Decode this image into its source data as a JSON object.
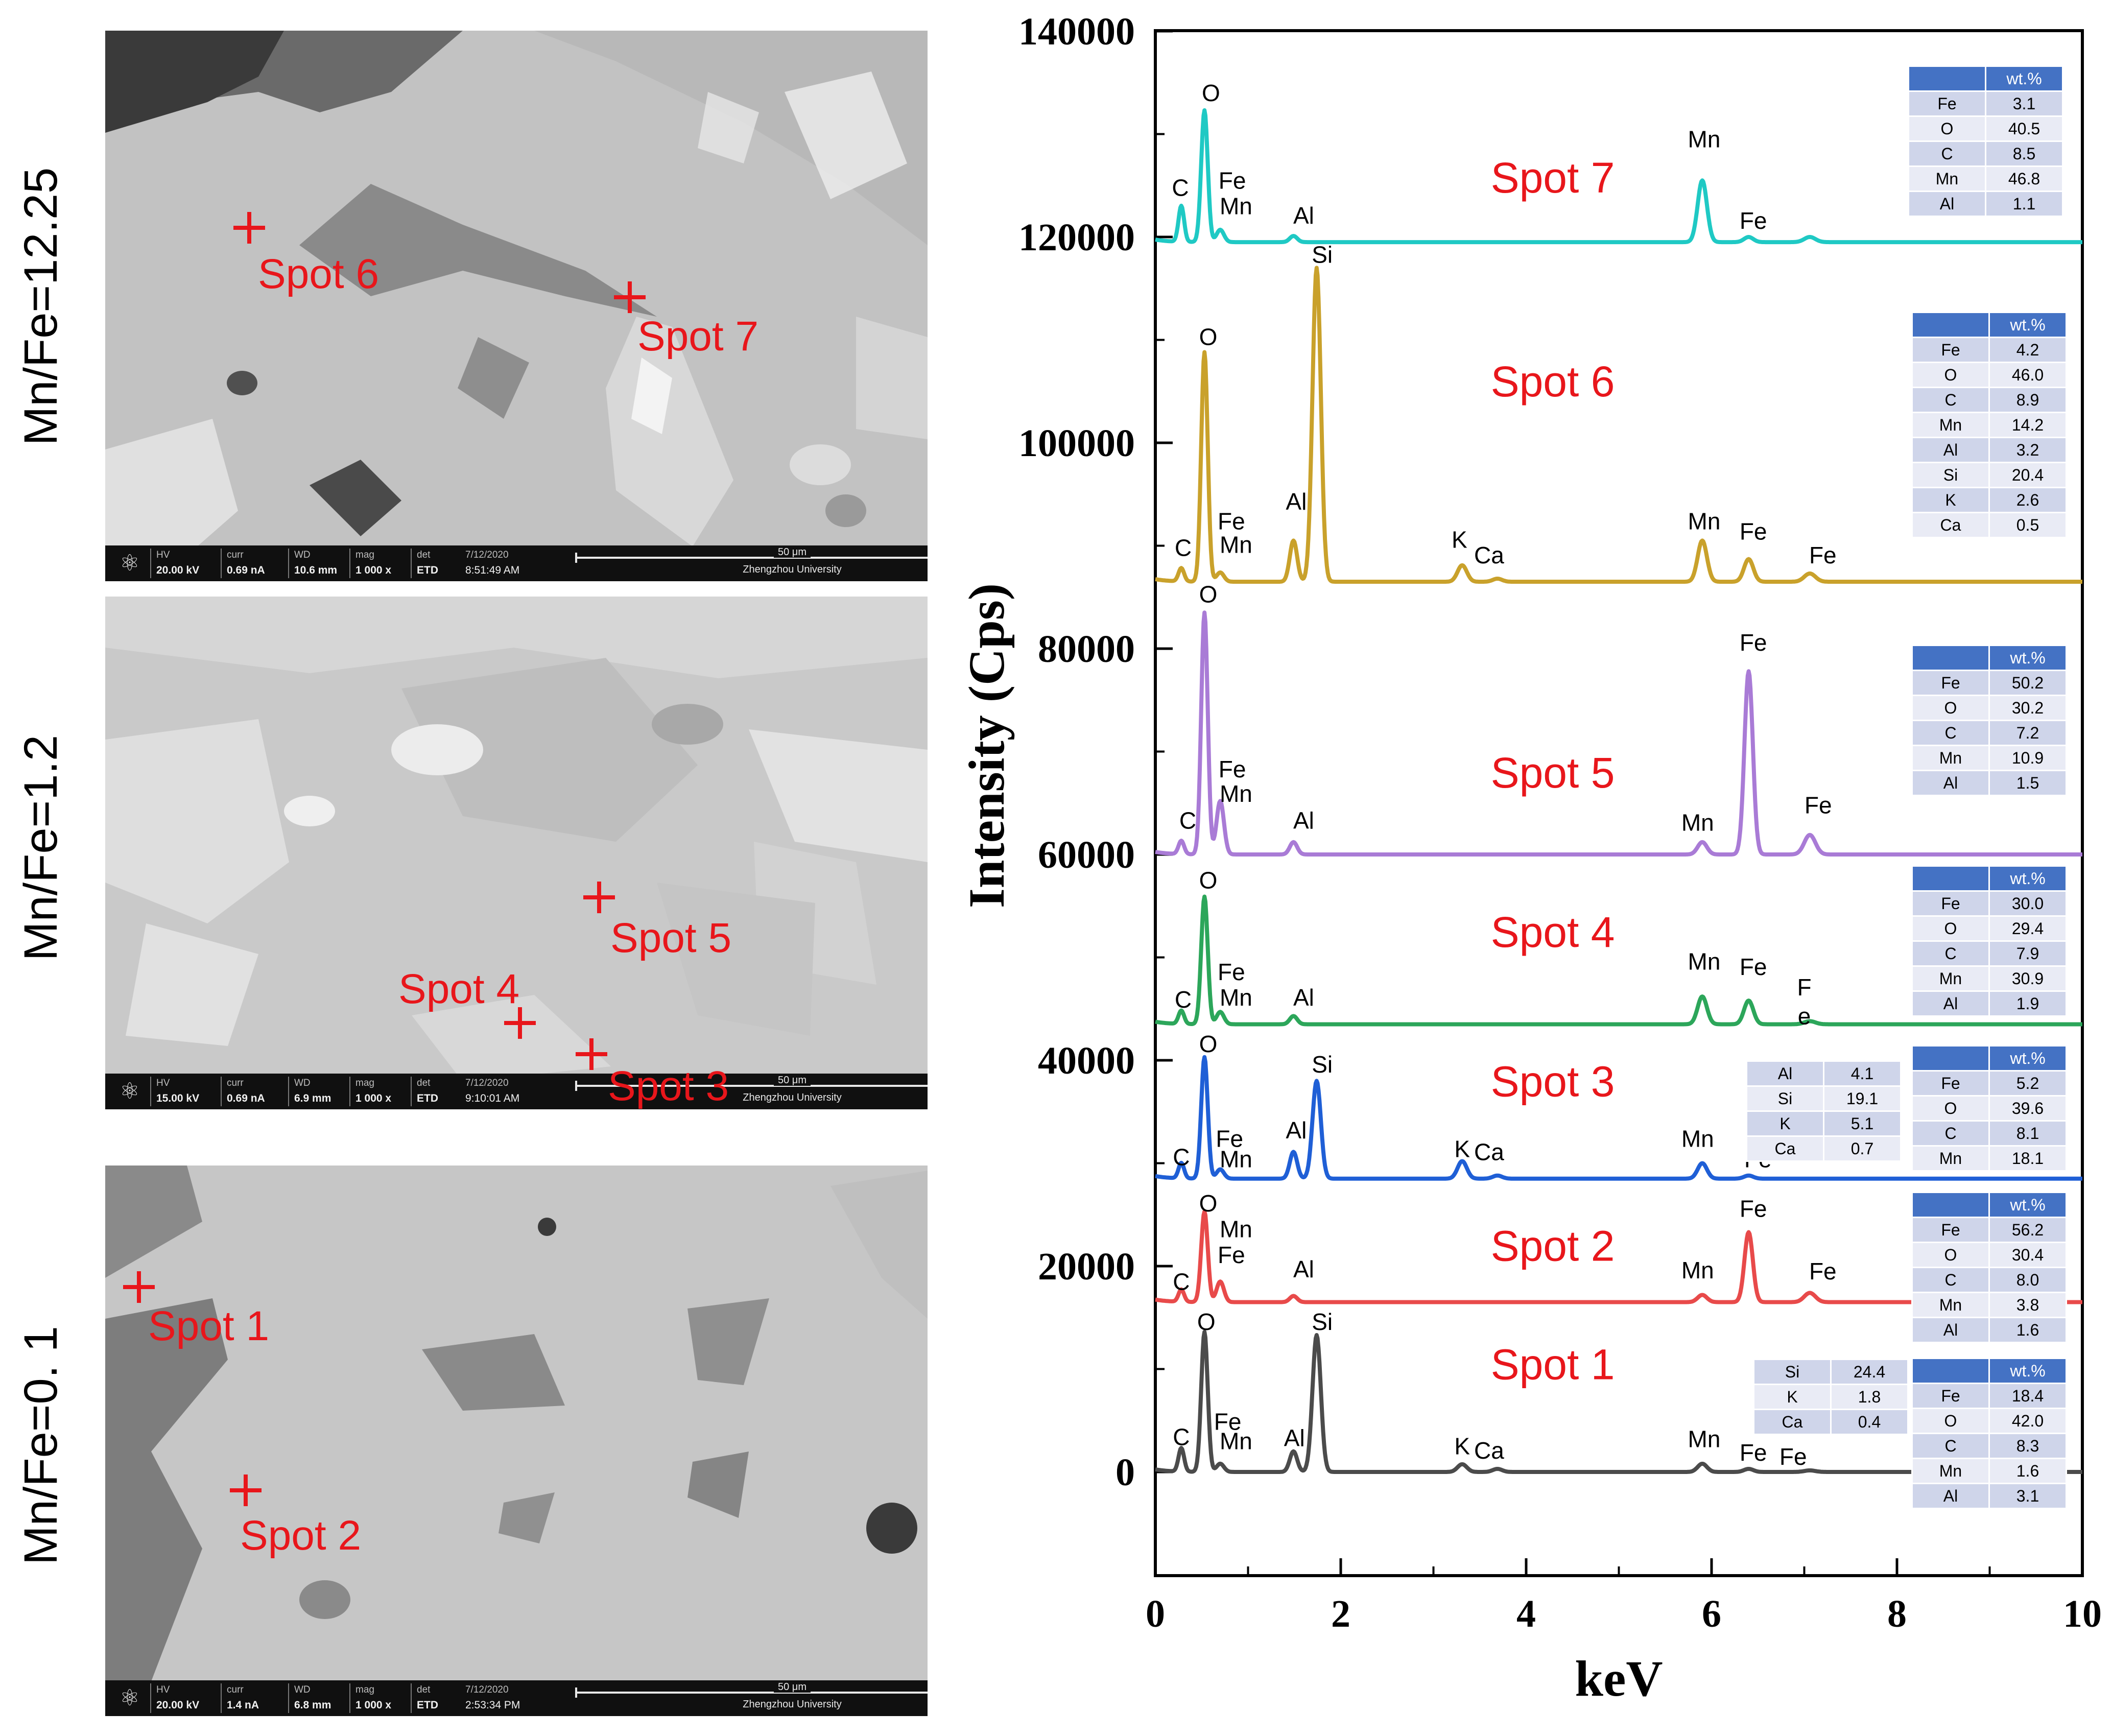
{
  "sem_panels": [
    {
      "sample_label": "Mn/Fe=12.25",
      "spots": [
        {
          "label": "Spot 6"
        },
        {
          "label": "Spot 7"
        }
      ],
      "info_bar": {
        "hv": "20.00 kV",
        "curr": "0.69 nA",
        "wd": "10.6 mm",
        "mag": "1 000 x",
        "det": "ETD",
        "date": "7/12/2020",
        "time": "8:51:49 AM",
        "scale": "50 μm",
        "institution": "Zhengzhou University"
      }
    },
    {
      "sample_label": "Mn/Fe=1.2",
      "spots": [
        {
          "label": "Spot 5"
        },
        {
          "label": "Spot 4"
        },
        {
          "label": "Spot 3"
        }
      ],
      "info_bar": {
        "hv": "15.00 kV",
        "curr": "0.69 nA",
        "wd": "6.9 mm",
        "mag": "1 000 x",
        "det": "ETD",
        "date": "7/12/2020",
        "time": "9:10:01 AM",
        "scale": "50 μm",
        "institution": "Zhengzhou University"
      }
    },
    {
      "sample_label": "Mn/Fe=0. 1",
      "spots": [
        {
          "label": "Spot 1"
        },
        {
          "label": "Spot 2"
        }
      ],
      "info_bar": {
        "hv": "20.00 kV",
        "curr": "1.4 nA",
        "wd": "6.8 mm",
        "mag": "1 000 x",
        "det": "ETD",
        "date": "7/12/2020",
        "time": "2:53:34 PM",
        "scale": "50 μm",
        "institution": "Zhengzhou University"
      }
    }
  ],
  "info_headers": {
    "hv": "HV",
    "curr": "curr",
    "wd": "WD",
    "mag": "mag",
    "det": "det"
  },
  "colors": {
    "spot_red": "#e8161b",
    "spot1": "#4b4b4b",
    "spot2": "#e84a4a",
    "spot3": "#1f5fd6",
    "spot4": "#2ca65a",
    "spot5": "#a97bd6",
    "spot6": "#c9a12b",
    "spot7": "#1fc9c4",
    "table_header": "#4472c4",
    "table_odd": "#cfd5ea",
    "table_even": "#e9ebf5"
  },
  "chart_data": {
    "type": "line",
    "title": "",
    "xlabel": "keV",
    "ylabel": "Intensity (Cps)",
    "xlim": [
      0,
      10
    ],
    "ylim": [
      -10000,
      140000
    ],
    "x_ticks": [
      0,
      2,
      4,
      6,
      8,
      10
    ],
    "y_ticks": [
      0,
      20000,
      40000,
      60000,
      80000,
      100000,
      120000,
      140000
    ],
    "x_tick_labels": [
      "0",
      "2",
      "4",
      "6",
      "8",
      "10"
    ],
    "y_tick_labels": [
      "0",
      "20000",
      "40000",
      "60000",
      "80000",
      "100000",
      "120000",
      "140000"
    ],
    "series": [
      {
        "name": "Spot 1",
        "baseline": 0,
        "color": "#4b4b4b",
        "label_y": 10500,
        "peaks": [
          {
            "x": 0.28,
            "y": 2300,
            "w": 0.03
          },
          {
            "x": 0.53,
            "y": 13600,
            "w": 0.035
          },
          {
            "x": 0.7,
            "y": 800,
            "w": 0.04
          },
          {
            "x": 1.49,
            "y": 2000,
            "w": 0.04
          },
          {
            "x": 1.74,
            "y": 13300,
            "w": 0.045
          },
          {
            "x": 3.31,
            "y": 750,
            "w": 0.05
          },
          {
            "x": 3.69,
            "y": 300,
            "w": 0.05
          },
          {
            "x": 5.9,
            "y": 800,
            "w": 0.05
          },
          {
            "x": 6.4,
            "y": 300,
            "w": 0.05
          },
          {
            "x": 7.06,
            "y": 150,
            "w": 0.06
          }
        ],
        "labels": [
          {
            "text": "C",
            "x": 0.28,
            "y": 2600
          },
          {
            "text": "O",
            "x": 0.55,
            "y": 13800
          },
          {
            "text": "Fe",
            "x": 0.78,
            "y": 4100
          },
          {
            "text": "Mn",
            "x": 0.87,
            "y": 2200
          },
          {
            "text": "Al",
            "x": 1.5,
            "y": 2500
          },
          {
            "text": "Si",
            "x": 1.8,
            "y": 13800
          },
          {
            "text": "K",
            "x": 3.31,
            "y": 1700
          },
          {
            "text": "Ca",
            "x": 3.6,
            "y": 1300
          },
          {
            "text": "Mn",
            "x": 5.92,
            "y": 2400
          },
          {
            "text": "Fe",
            "x": 6.45,
            "y": 1100
          },
          {
            "text": "Fe",
            "x": 6.88,
            "y": 700
          }
        ],
        "table_left": [
          [
            "Si",
            "24.4"
          ],
          [
            "K",
            "1.8"
          ],
          [
            "Ca",
            "0.4"
          ]
        ],
        "table_right_header": "wt.%",
        "table_right": [
          [
            "Fe",
            "18.4"
          ],
          [
            "O",
            "42.0"
          ],
          [
            "C",
            "8.3"
          ],
          [
            "Mn",
            "1.6"
          ],
          [
            "Al",
            "3.1"
          ]
        ]
      },
      {
        "name": "Spot 2",
        "baseline": 16500,
        "color": "#e84a4a",
        "label_y": 22000,
        "peaks": [
          {
            "x": 0.28,
            "y": 1200,
            "w": 0.03
          },
          {
            "x": 0.53,
            "y": 8800,
            "w": 0.035
          },
          {
            "x": 0.7,
            "y": 2000,
            "w": 0.04
          },
          {
            "x": 1.49,
            "y": 600,
            "w": 0.04
          },
          {
            "x": 5.9,
            "y": 700,
            "w": 0.05
          },
          {
            "x": 6.4,
            "y": 6800,
            "w": 0.045
          },
          {
            "x": 7.06,
            "y": 900,
            "w": 0.06
          }
        ],
        "labels": [
          {
            "text": "C",
            "x": 0.28,
            "y": 17700
          },
          {
            "text": "O",
            "x": 0.57,
            "y": 25300
          },
          {
            "text": "Mn",
            "x": 0.87,
            "y": 22800
          },
          {
            "text": "Fe",
            "x": 0.82,
            "y": 20300
          },
          {
            "text": "Al",
            "x": 1.6,
            "y": 18900
          },
          {
            "text": "Mn",
            "x": 5.85,
            "y": 18800
          },
          {
            "text": "Fe",
            "x": 6.45,
            "y": 24800
          },
          {
            "text": "Fe",
            "x": 7.2,
            "y": 18700
          }
        ],
        "table_left": [],
        "table_right_header": "wt.%",
        "table_right": [
          [
            "Fe",
            "56.2"
          ],
          [
            "O",
            "30.4"
          ],
          [
            "C",
            "8.0"
          ],
          [
            "Mn",
            "3.8"
          ],
          [
            "Al",
            "1.6"
          ]
        ]
      },
      {
        "name": "Spot 3",
        "baseline": 28500,
        "color": "#1f5fd6",
        "label_y": 38000,
        "peaks": [
          {
            "x": 0.28,
            "y": 1500,
            "w": 0.03
          },
          {
            "x": 0.53,
            "y": 11800,
            "w": 0.035
          },
          {
            "x": 0.7,
            "y": 900,
            "w": 0.04
          },
          {
            "x": 1.49,
            "y": 2600,
            "w": 0.04
          },
          {
            "x": 1.74,
            "y": 9500,
            "w": 0.045
          },
          {
            "x": 3.31,
            "y": 1700,
            "w": 0.05
          },
          {
            "x": 3.69,
            "y": 300,
            "w": 0.05
          },
          {
            "x": 5.9,
            "y": 1500,
            "w": 0.05
          },
          {
            "x": 6.4,
            "y": 300,
            "w": 0.05
          }
        ],
        "labels": [
          {
            "text": "C",
            "x": 0.28,
            "y": 29800
          },
          {
            "text": "O",
            "x": 0.57,
            "y": 40800
          },
          {
            "text": "Fe",
            "x": 0.8,
            "y": 31600
          },
          {
            "text": "Mn",
            "x": 0.87,
            "y": 29600
          },
          {
            "text": "Al",
            "x": 1.52,
            "y": 32400
          },
          {
            "text": "Si",
            "x": 1.8,
            "y": 38800
          },
          {
            "text": "K",
            "x": 3.31,
            "y": 30600
          },
          {
            "text": "Ca",
            "x": 3.6,
            "y": 30300
          },
          {
            "text": "Mn",
            "x": 5.85,
            "y": 31600
          },
          {
            "text": "Fe",
            "x": 6.5,
            "y": 29600
          }
        ],
        "table_left": [
          [
            "Al",
            "4.1"
          ],
          [
            "Si",
            "19.1"
          ],
          [
            "K",
            "5.1"
          ],
          [
            "Ca",
            "0.7"
          ]
        ],
        "table_right_header": "wt.%",
        "table_right": [
          [
            "Fe",
            "5.2"
          ],
          [
            "O",
            "39.6"
          ],
          [
            "C",
            "8.1"
          ],
          [
            "Mn",
            "18.1"
          ]
        ]
      },
      {
        "name": "Spot 4",
        "baseline": 43500,
        "color": "#2ca65a",
        "label_y": 52500,
        "peaks": [
          {
            "x": 0.28,
            "y": 1300,
            "w": 0.03
          },
          {
            "x": 0.53,
            "y": 12400,
            "w": 0.035
          },
          {
            "x": 0.7,
            "y": 1200,
            "w": 0.04
          },
          {
            "x": 1.49,
            "y": 800,
            "w": 0.04
          },
          {
            "x": 5.9,
            "y": 2700,
            "w": 0.05
          },
          {
            "x": 6.4,
            "y": 2300,
            "w": 0.05
          },
          {
            "x": 7.06,
            "y": 300,
            "w": 0.06
          }
        ],
        "labels": [
          {
            "text": "C",
            "x": 0.3,
            "y": 45100
          },
          {
            "text": "O",
            "x": 0.57,
            "y": 56700
          },
          {
            "text": "Fe",
            "x": 0.82,
            "y": 47800
          },
          {
            "text": "Mn",
            "x": 0.87,
            "y": 45300
          },
          {
            "text": "Al",
            "x": 1.6,
            "y": 45300
          },
          {
            "text": "Mn",
            "x": 5.92,
            "y": 48800
          },
          {
            "text": "Fe",
            "x": 6.45,
            "y": 48300
          },
          {
            "text": "F",
            "x": 7.0,
            "y": 46300
          },
          {
            "text": "e",
            "x": 7.0,
            "y": 43500
          }
        ],
        "table_left": [],
        "table_right_header": "wt.%",
        "table_right": [
          [
            "Fe",
            "30.0"
          ],
          [
            "O",
            "29.4"
          ],
          [
            "C",
            "7.9"
          ],
          [
            "Mn",
            "30.9"
          ],
          [
            "Al",
            "1.9"
          ]
        ]
      },
      {
        "name": "Spot 5",
        "baseline": 60000,
        "color": "#a97bd6",
        "label_y": 68000,
        "peaks": [
          {
            "x": 0.28,
            "y": 1300,
            "w": 0.03
          },
          {
            "x": 0.53,
            "y": 23500,
            "w": 0.035
          },
          {
            "x": 0.7,
            "y": 5200,
            "w": 0.04
          },
          {
            "x": 1.49,
            "y": 1200,
            "w": 0.04
          },
          {
            "x": 5.9,
            "y": 1200,
            "w": 0.05
          },
          {
            "x": 6.4,
            "y": 17800,
            "w": 0.045
          },
          {
            "x": 7.06,
            "y": 1900,
            "w": 0.06
          }
        ],
        "labels": [
          {
            "text": "C",
            "x": 0.35,
            "y": 62500
          },
          {
            "text": "O",
            "x": 0.57,
            "y": 84500
          },
          {
            "text": "Fe",
            "x": 0.83,
            "y": 67500
          },
          {
            "text": "Mn",
            "x": 0.87,
            "y": 65100
          },
          {
            "text": "Al",
            "x": 1.6,
            "y": 62500
          },
          {
            "text": "Mn",
            "x": 5.85,
            "y": 62300
          },
          {
            "text": "Fe",
            "x": 6.45,
            "y": 79800
          },
          {
            "text": "Fe",
            "x": 7.15,
            "y": 64000
          }
        ],
        "table_left": [],
        "table_right_header": "wt.%",
        "table_right": [
          [
            "Fe",
            "50.2"
          ],
          [
            "O",
            "30.2"
          ],
          [
            "C",
            "7.2"
          ],
          [
            "Mn",
            "10.9"
          ],
          [
            "Al",
            "1.5"
          ]
        ]
      },
      {
        "name": "Spot 6",
        "baseline": 86500,
        "color": "#c9a12b",
        "label_y": 106000,
        "peaks": [
          {
            "x": 0.28,
            "y": 1300,
            "w": 0.03
          },
          {
            "x": 0.53,
            "y": 22300,
            "w": 0.035
          },
          {
            "x": 0.7,
            "y": 900,
            "w": 0.04
          },
          {
            "x": 1.49,
            "y": 4000,
            "w": 0.04
          },
          {
            "x": 1.74,
            "y": 30500,
            "w": 0.045
          },
          {
            "x": 3.31,
            "y": 1600,
            "w": 0.05
          },
          {
            "x": 3.69,
            "y": 300,
            "w": 0.05
          },
          {
            "x": 5.9,
            "y": 4000,
            "w": 0.05
          },
          {
            "x": 6.4,
            "y": 2200,
            "w": 0.05
          },
          {
            "x": 7.06,
            "y": 800,
            "w": 0.06
          }
        ],
        "labels": [
          {
            "text": "C",
            "x": 0.3,
            "y": 89000
          },
          {
            "text": "O",
            "x": 0.57,
            "y": 109500
          },
          {
            "text": "Fe",
            "x": 0.82,
            "y": 91600
          },
          {
            "text": "Mn",
            "x": 0.87,
            "y": 89300
          },
          {
            "text": "Al",
            "x": 1.52,
            "y": 93500
          },
          {
            "text": "Si",
            "x": 1.8,
            "y": 117500
          },
          {
            "text": "K",
            "x": 3.28,
            "y": 89800
          },
          {
            "text": "Ca",
            "x": 3.6,
            "y": 88300
          },
          {
            "text": "Mn",
            "x": 5.92,
            "y": 91600
          },
          {
            "text": "Fe",
            "x": 6.45,
            "y": 90600
          },
          {
            "text": "Fe",
            "x": 7.2,
            "y": 88300
          }
        ],
        "table_left": [],
        "table_right_header": "wt.%",
        "table_right": [
          [
            "Fe",
            "4.2"
          ],
          [
            "O",
            "46.0"
          ],
          [
            "C",
            "8.9"
          ],
          [
            "Mn",
            "14.2"
          ],
          [
            "Al",
            "3.2"
          ],
          [
            "Si",
            "20.4"
          ],
          [
            "K",
            "2.6"
          ],
          [
            "Ca",
            "0.5"
          ]
        ]
      },
      {
        "name": "Spot 7",
        "baseline": 119500,
        "color": "#1fc9c4",
        "label_y": 125800,
        "peaks": [
          {
            "x": 0.28,
            "y": 3500,
            "w": 0.03
          },
          {
            "x": 0.53,
            "y": 12800,
            "w": 0.035
          },
          {
            "x": 0.7,
            "y": 1200,
            "w": 0.04
          },
          {
            "x": 1.49,
            "y": 600,
            "w": 0.04
          },
          {
            "x": 5.9,
            "y": 6000,
            "w": 0.05
          },
          {
            "x": 6.4,
            "y": 500,
            "w": 0.05
          },
          {
            "x": 7.06,
            "y": 500,
            "w": 0.06
          }
        ],
        "labels": [
          {
            "text": "C",
            "x": 0.27,
            "y": 124000
          },
          {
            "text": "O",
            "x": 0.6,
            "y": 133200
          },
          {
            "text": "Fe",
            "x": 0.83,
            "y": 124700
          },
          {
            "text": "Mn",
            "x": 0.87,
            "y": 122200
          },
          {
            "text": "Al",
            "x": 1.6,
            "y": 121300
          },
          {
            "text": "Mn",
            "x": 5.92,
            "y": 128700
          },
          {
            "text": "Fe",
            "x": 6.45,
            "y": 120800
          }
        ],
        "table_left": [],
        "table_right_header": "wt.%",
        "table_right": [
          [
            "Fe",
            "3.1"
          ],
          [
            "O",
            "40.5"
          ],
          [
            "C",
            "8.5"
          ],
          [
            "Mn",
            "46.8"
          ],
          [
            "Al",
            "1.1"
          ]
        ]
      }
    ]
  }
}
